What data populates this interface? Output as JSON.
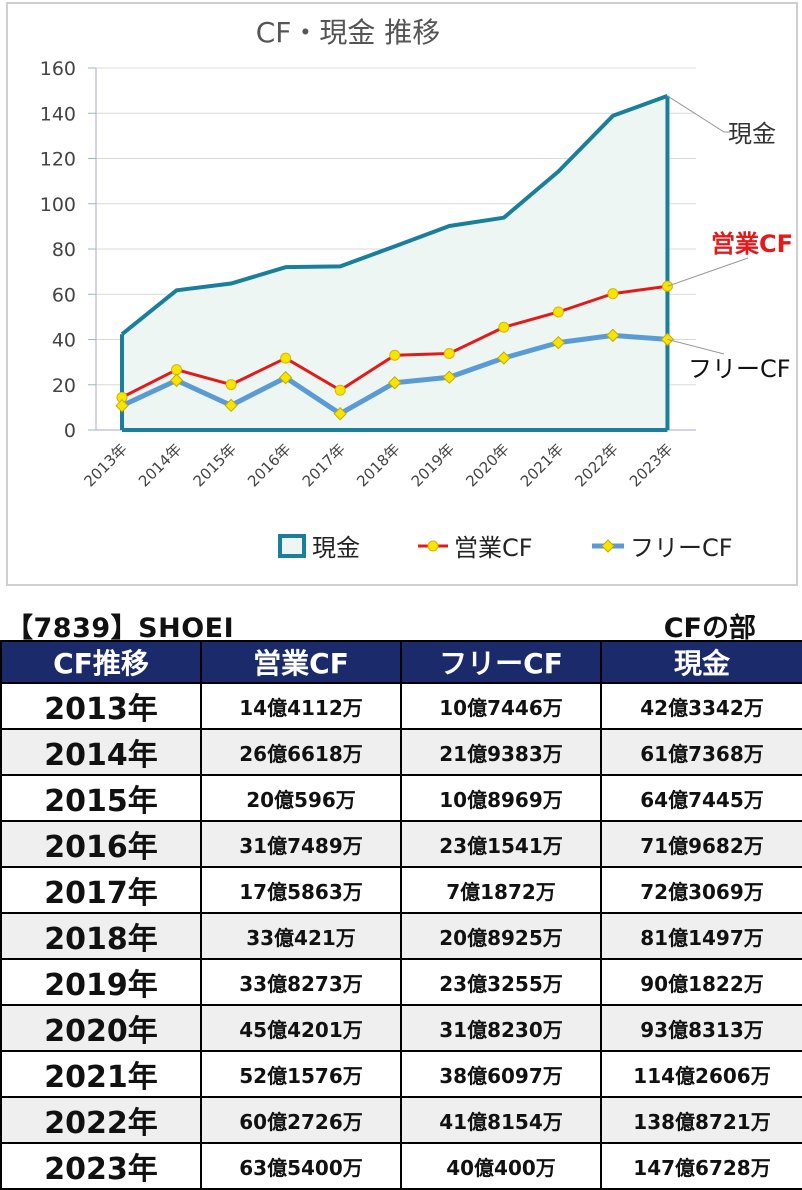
{
  "chart_data": {
    "type": "line",
    "title": "CF・現金 推移",
    "categories": [
      "2013年",
      "2014年",
      "2015年",
      "2016年",
      "2017年",
      "2018年",
      "2019年",
      "2020年",
      "2021年",
      "2022年",
      "2023年"
    ],
    "ylim": [
      0,
      160
    ],
    "yticks": [
      0,
      20,
      40,
      60,
      80,
      100,
      120,
      140,
      160
    ],
    "grid": true,
    "legend_position": "bottom",
    "series": [
      {
        "name": "現金",
        "kind": "area",
        "color": "#1a7f9a",
        "fill": "#eef6f4",
        "values": [
          42.33,
          61.74,
          64.74,
          71.97,
          72.31,
          81.15,
          90.18,
          93.83,
          114.26,
          138.87,
          147.67
        ]
      },
      {
        "name": "営業CF",
        "kind": "line",
        "color": "#e41a1a",
        "marker": "#f5e600",
        "values": [
          14.41,
          26.66,
          20.06,
          31.75,
          17.59,
          33.04,
          33.83,
          45.42,
          52.16,
          60.27,
          63.54
        ]
      },
      {
        "name": "フリーCF",
        "kind": "line",
        "color": "#5b9bd5",
        "marker": "#f5e600",
        "values": [
          10.74,
          21.94,
          10.9,
          23.15,
          7.19,
          20.89,
          23.33,
          31.82,
          38.61,
          41.82,
          40.04
        ]
      }
    ],
    "annotations": [
      {
        "text": "現金",
        "color": "#333333"
      },
      {
        "text": "営業CF",
        "color": "#e41a1a"
      },
      {
        "text": "フリーCF",
        "color": "#111111"
      }
    ]
  },
  "header": {
    "company": "【7839】SHOEI",
    "section": "CFの部"
  },
  "table": {
    "columns": [
      "CF推移",
      "営業CF",
      "フリーCF",
      "現金"
    ],
    "rows": [
      {
        "year": "2013年",
        "op": "14億4112万",
        "free": "10億7446万",
        "cash": "42億3342万"
      },
      {
        "year": "2014年",
        "op": "26億6618万",
        "free": "21億9383万",
        "cash": "61億7368万"
      },
      {
        "year": "2015年",
        "op": "20億596万",
        "free": "10億8969万",
        "cash": "64億7445万"
      },
      {
        "year": "2016年",
        "op": "31億7489万",
        "free": "23億1541万",
        "cash": "71億9682万"
      },
      {
        "year": "2017年",
        "op": "17億5863万",
        "free": "7億1872万",
        "cash": "72億3069万"
      },
      {
        "year": "2018年",
        "op": "33億421万",
        "free": "20億8925万",
        "cash": "81億1497万"
      },
      {
        "year": "2019年",
        "op": "33億8273万",
        "free": "23億3255万",
        "cash": "90億1822万"
      },
      {
        "year": "2020年",
        "op": "45億4201万",
        "free": "31億8230万",
        "cash": "93億8313万"
      },
      {
        "year": "2021年",
        "op": "52億1576万",
        "free": "38億6097万",
        "cash": "114億2606万"
      },
      {
        "year": "2022年",
        "op": "60億2726万",
        "free": "41億8154万",
        "cash": "138億8721万"
      },
      {
        "year": "2023年",
        "op": "63億5400万",
        "free": "40億400万",
        "cash": "147億6728万"
      }
    ]
  }
}
